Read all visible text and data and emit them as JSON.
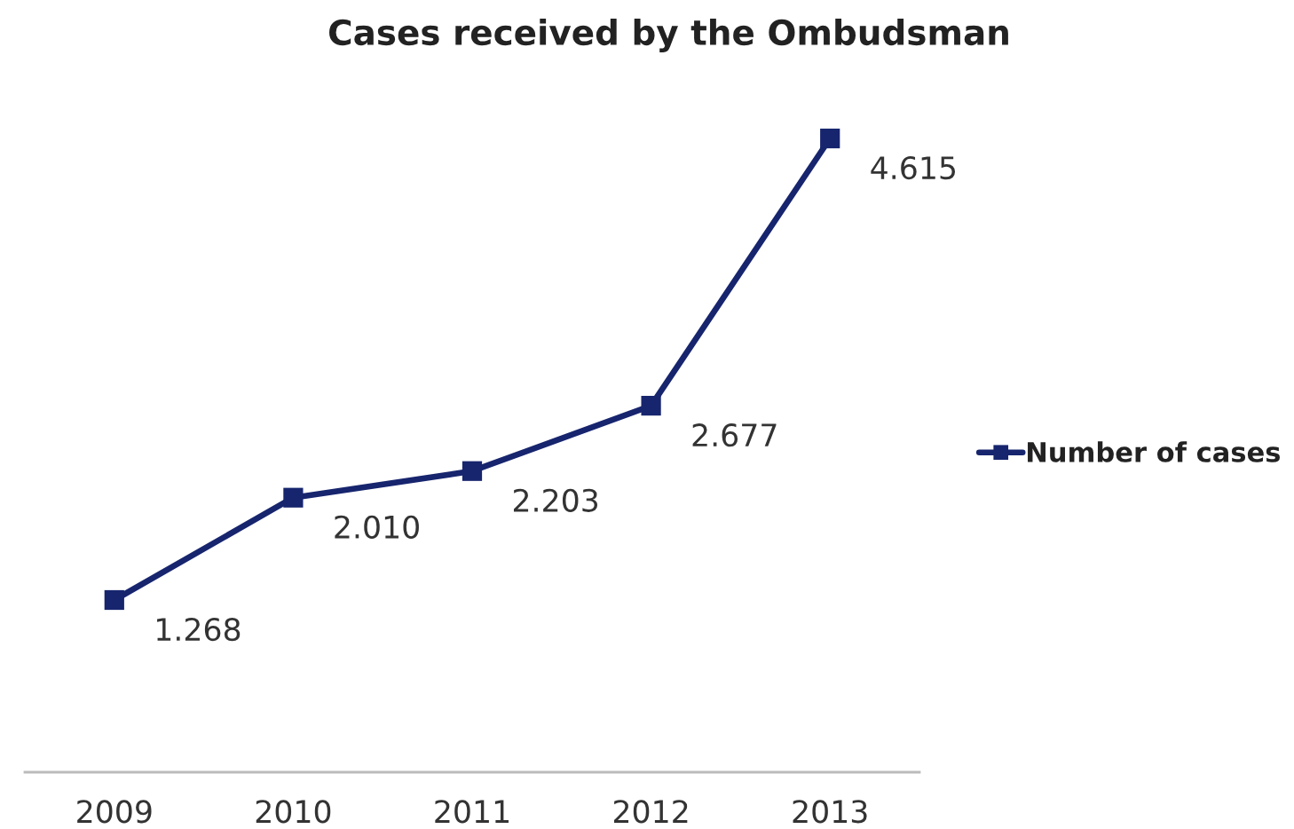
{
  "chart_data": {
    "type": "line",
    "title": "Cases received by the Ombudsman",
    "categories": [
      "2009",
      "2010",
      "2011",
      "2012",
      "2013"
    ],
    "series": [
      {
        "name": "Number of cases",
        "color": "#17256e",
        "values": [
          1268,
          2010,
          2203,
          2677,
          4615
        ],
        "value_labels": [
          "1.268",
          "2.010",
          "2.203",
          "2.677",
          "4.615"
        ]
      }
    ],
    "tick_labels": "x",
    "marker": "square",
    "line_style": "solid",
    "legend": "right",
    "grid": false
  }
}
